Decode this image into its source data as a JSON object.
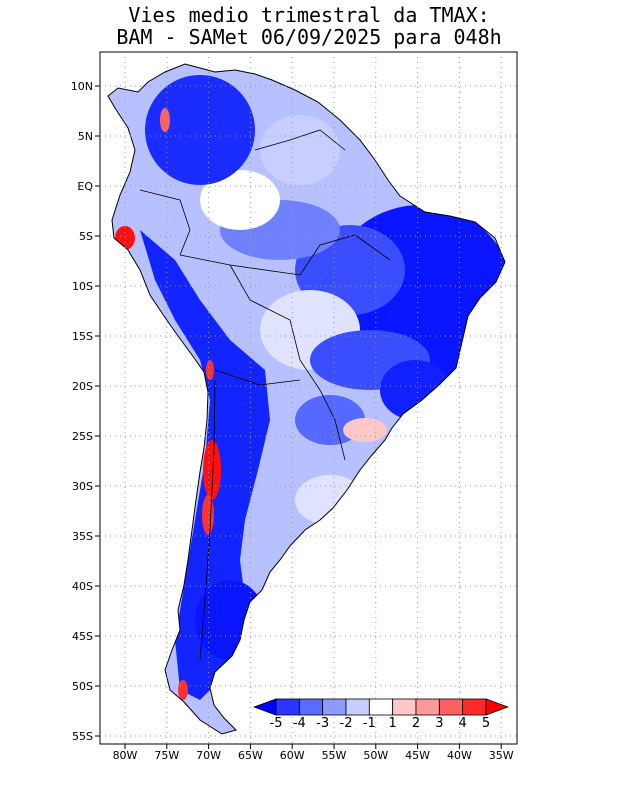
{
  "title": {
    "line1": "Vies medio trimestral da TMAX:",
    "line2": "BAM - SAMet 06/09/2025  para 048h"
  },
  "axes": {
    "lon_labels": [
      "80W",
      "75W",
      "70W",
      "65W",
      "60W",
      "55W",
      "50W",
      "45W",
      "40W",
      "35W"
    ],
    "lat_labels": [
      "10N",
      "5N",
      "EQ",
      "5S",
      "10S",
      "15S",
      "20S",
      "25S",
      "30S",
      "35S",
      "40S",
      "45S",
      "50S",
      "55S"
    ]
  },
  "colorbar": {
    "labels": [
      "-5",
      "-4",
      "-3",
      "-2",
      "-1",
      "1",
      "2",
      "3",
      "4",
      "5"
    ],
    "colors": [
      "#0000ff",
      "#2a35ff",
      "#5a6cff",
      "#8d9bff",
      "#c8ceff",
      "#ffffff",
      "#ffc8c8",
      "#ff9a9a",
      "#ff6060",
      "#ff2a2a",
      "#ff0000"
    ]
  },
  "colors": {
    "strong_cold": "#1020ff",
    "cold": "#3a4dff",
    "mid_cold": "#6f80ff",
    "weak_cold": "#a9b5ff",
    "very_weak_cold": "#d4daff",
    "warm": "#ff5555",
    "strong_warm": "#ff1010",
    "grid": "#9a9a9a",
    "land_outline": "#000000"
  }
}
